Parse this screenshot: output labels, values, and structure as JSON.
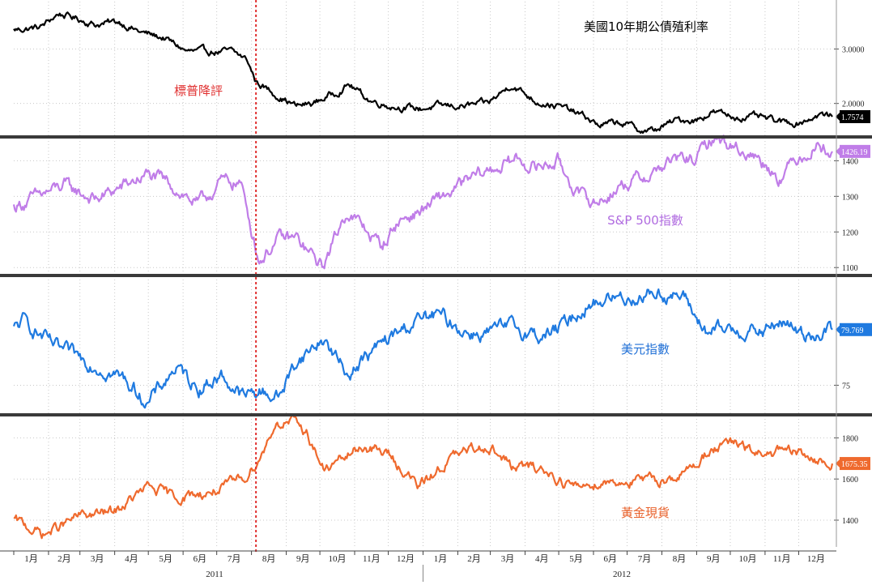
{
  "chart_data": [
    {
      "type": "line",
      "title": "美國10年期公債殖利率",
      "color": "#000000",
      "title_color": "#000000",
      "yaxis_labels": [
        "3.0000",
        "2.0000"
      ],
      "ytick_values": [
        3.0,
        2.0
      ],
      "ylim": [
        1.4,
        3.9
      ],
      "last_value_label": "1.7574",
      "x": [
        "2011-01-01",
        "2011-01-25",
        "2011-02-10",
        "2011-02-28",
        "2011-03-15",
        "2011-04-05",
        "2011-04-25",
        "2011-05-15",
        "2011-06-05",
        "2011-06-25",
        "2011-07-15",
        "2011-07-28",
        "2011-08-05",
        "2011-08-20",
        "2011-09-10",
        "2011-09-25",
        "2011-10-15",
        "2011-10-27",
        "2011-11-15",
        "2011-12-05",
        "2011-12-28",
        "2012-01-15",
        "2012-02-05",
        "2012-02-28",
        "2012-03-20",
        "2012-04-10",
        "2012-05-01",
        "2012-05-25",
        "2012-06-05",
        "2012-06-25",
        "2012-07-15",
        "2012-07-25",
        "2012-08-15",
        "2012-09-01",
        "2012-09-15",
        "2012-10-05",
        "2012-10-25",
        "2012-11-15",
        "2012-12-01",
        "2012-12-20",
        "2012-12-31"
      ],
      "values": [
        3.35,
        3.4,
        3.65,
        3.55,
        3.45,
        3.5,
        3.3,
        3.2,
        2.95,
        2.95,
        2.95,
        2.8,
        2.4,
        2.2,
        1.95,
        2.0,
        2.2,
        2.35,
        2.05,
        1.95,
        1.9,
        1.95,
        1.95,
        2.0,
        2.35,
        2.05,
        1.95,
        1.75,
        1.6,
        1.65,
        1.5,
        1.5,
        1.7,
        1.7,
        1.85,
        1.75,
        1.75,
        1.65,
        1.65,
        1.8,
        1.7574
      ]
    },
    {
      "type": "line",
      "title": "S&P 500指數",
      "color": "#c07de8",
      "title_color": "#b06be0",
      "yaxis_labels": [
        "1400",
        "1300",
        "1200",
        "1100"
      ],
      "ytick_values": [
        1400,
        1300,
        1200,
        1100
      ],
      "ylim": [
        1080,
        1460
      ],
      "last_value_label": "1426.19",
      "x": [
        "2011-01-01",
        "2011-02-15",
        "2011-03-15",
        "2011-04-10",
        "2011-04-29",
        "2011-05-20",
        "2011-06-15",
        "2011-07-05",
        "2011-07-22",
        "2011-08-08",
        "2011-08-25",
        "2011-09-10",
        "2011-10-03",
        "2011-10-25",
        "2011-11-25",
        "2011-12-10",
        "2011-12-30",
        "2012-01-25",
        "2012-02-20",
        "2012-03-25",
        "2012-04-10",
        "2012-04-30",
        "2012-05-20",
        "2012-06-04",
        "2012-06-25",
        "2012-07-20",
        "2012-08-10",
        "2012-09-01",
        "2012-09-15",
        "2012-10-05",
        "2012-10-25",
        "2012-11-15",
        "2012-11-30",
        "2012-12-18",
        "2012-12-31"
      ],
      "values": [
        1270,
        1330,
        1290,
        1330,
        1360,
        1335,
        1275,
        1340,
        1340,
        1120,
        1180,
        1180,
        1100,
        1260,
        1160,
        1230,
        1260,
        1310,
        1360,
        1405,
        1380,
        1400,
        1300,
        1280,
        1330,
        1360,
        1400,
        1405,
        1465,
        1440,
        1410,
        1355,
        1410,
        1445,
        1426.19
      ]
    },
    {
      "type": "line",
      "title": "美元指數",
      "color": "#1f7ae0",
      "title_color": "#1f6fd6",
      "yaxis_labels": [
        "75"
      ],
      "ytick_values": [
        75
      ],
      "ylim": [
        72.6,
        84.2
      ],
      "last_value_label": "79.769",
      "x": [
        "2011-01-01",
        "2011-01-10",
        "2011-02-10",
        "2011-03-10",
        "2011-04-10",
        "2011-05-01",
        "2011-05-25",
        "2011-06-15",
        "2011-07-05",
        "2011-07-25",
        "2011-08-10",
        "2011-08-25",
        "2011-09-10",
        "2011-10-04",
        "2011-10-25",
        "2011-11-25",
        "2011-12-25",
        "2012-01-15",
        "2012-02-10",
        "2012-02-28",
        "2012-03-20",
        "2012-04-15",
        "2012-05-01",
        "2012-05-25",
        "2012-06-15",
        "2012-07-05",
        "2012-07-25",
        "2012-08-20",
        "2012-09-10",
        "2012-10-05",
        "2012-10-30",
        "2012-11-15",
        "2012-12-05",
        "2012-12-31"
      ],
      "values": [
        79.8,
        80.5,
        78.0,
        77.0,
        75.5,
        73.5,
        76.5,
        74.8,
        75.8,
        74.0,
        74.5,
        74.0,
        77.0,
        79.0,
        76.0,
        78.5,
        80.5,
        81.0,
        79.5,
        79.5,
        80.0,
        79.2,
        79.8,
        81.8,
        82.5,
        82.5,
        83.0,
        82.5,
        79.5,
        79.8,
        79.5,
        80.5,
        79.3,
        79.769
      ]
    },
    {
      "type": "line",
      "title": "黃金現貨",
      "color": "#ef6a2e",
      "title_color": "#e8602a",
      "yaxis_labels": [
        "1800",
        "1600",
        "1400"
      ],
      "ytick_values": [
        1800,
        1600,
        1400
      ],
      "ylim": [
        1270,
        1900
      ],
      "last_value_label": "1675.35",
      "x": [
        "2011-01-01",
        "2011-01-28",
        "2011-03-01",
        "2011-04-01",
        "2011-05-01",
        "2011-05-25",
        "2011-06-20",
        "2011-07-10",
        "2011-07-28",
        "2011-08-10",
        "2011-08-22",
        "2011-09-05",
        "2011-09-20",
        "2011-10-05",
        "2011-11-08",
        "2011-12-01",
        "2011-12-29",
        "2012-01-25",
        "2012-02-28",
        "2012-03-20",
        "2012-04-15",
        "2012-05-15",
        "2012-06-10",
        "2012-07-05",
        "2012-07-25",
        "2012-08-20",
        "2012-09-15",
        "2012-10-05",
        "2012-10-25",
        "2012-11-15",
        "2012-12-05",
        "2012-12-28",
        "2012-12-31"
      ],
      "values": [
        1400,
        1330,
        1420,
        1440,
        1560,
        1510,
        1530,
        1560,
        1620,
        1720,
        1870,
        1880,
        1820,
        1640,
        1760,
        1720,
        1560,
        1700,
        1770,
        1660,
        1650,
        1560,
        1590,
        1590,
        1590,
        1620,
        1750,
        1770,
        1720,
        1730,
        1720,
        1660,
        1675.35
      ]
    }
  ],
  "x_axis": {
    "months": [
      "1月",
      "2月",
      "3月",
      "4月",
      "5月",
      "6月",
      "7月",
      "8月",
      "9月",
      "10月",
      "11月",
      "12月",
      "1月",
      "2月",
      "3月",
      "4月",
      "5月",
      "6月",
      "7月",
      "8月",
      "9月",
      "10月",
      "11月",
      "12月"
    ],
    "years": [
      "2011",
      "2012"
    ]
  },
  "annotation": {
    "label": "標普降評",
    "date": "2011-08-05",
    "color": "#e03030"
  }
}
